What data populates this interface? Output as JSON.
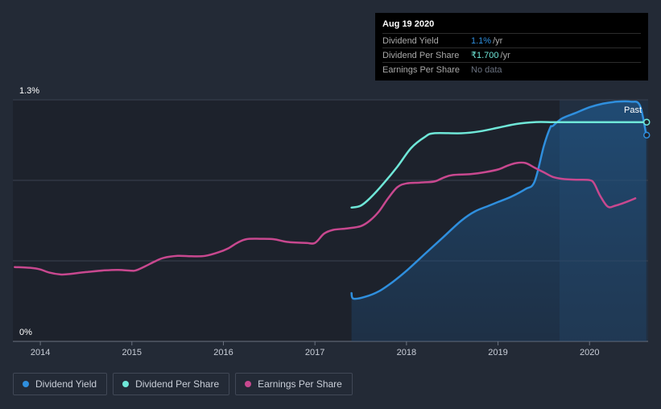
{
  "chart_data": {
    "type": "line",
    "y_axis": {
      "min_label": "0%",
      "max_label": "1.3%",
      "ylim": [
        0,
        1.3
      ]
    },
    "x_axis": {
      "ticks": [
        "2014",
        "2015",
        "2016",
        "2017",
        "2018",
        "2019",
        "2020"
      ],
      "xlim": [
        2013.7,
        2020.64
      ]
    },
    "past_label": "Past",
    "series": [
      {
        "name": "Dividend Yield",
        "key": "yield",
        "color": "#2f8fde",
        "fill": true,
        "points": [
          [
            2017.4,
            0.26
          ],
          [
            2017.42,
            0.23
          ],
          [
            2017.55,
            0.24
          ],
          [
            2017.7,
            0.27
          ],
          [
            2017.85,
            0.32
          ],
          [
            2018.0,
            0.38
          ],
          [
            2018.2,
            0.47
          ],
          [
            2018.4,
            0.56
          ],
          [
            2018.6,
            0.65
          ],
          [
            2018.75,
            0.7
          ],
          [
            2018.9,
            0.73
          ],
          [
            2019.0,
            0.75
          ],
          [
            2019.15,
            0.78
          ],
          [
            2019.3,
            0.82
          ],
          [
            2019.4,
            0.86
          ],
          [
            2019.5,
            1.05
          ],
          [
            2019.57,
            1.15
          ],
          [
            2019.6,
            1.16
          ],
          [
            2019.7,
            1.2
          ],
          [
            2019.85,
            1.23
          ],
          [
            2020.0,
            1.26
          ],
          [
            2020.15,
            1.28
          ],
          [
            2020.3,
            1.29
          ],
          [
            2020.45,
            1.29
          ],
          [
            2020.55,
            1.27
          ],
          [
            2020.62,
            1.11
          ]
        ]
      },
      {
        "name": "Dividend Per Share",
        "key": "dps",
        "color": "#6fe7d8",
        "fill": false,
        "points": [
          [
            2017.4,
            0.72
          ],
          [
            2017.5,
            0.73
          ],
          [
            2017.6,
            0.77
          ],
          [
            2017.75,
            0.85
          ],
          [
            2017.9,
            0.94
          ],
          [
            2018.05,
            1.04
          ],
          [
            2018.2,
            1.1
          ],
          [
            2018.3,
            1.12
          ],
          [
            2018.6,
            1.12
          ],
          [
            2018.8,
            1.13
          ],
          [
            2019.0,
            1.15
          ],
          [
            2019.2,
            1.17
          ],
          [
            2019.4,
            1.18
          ],
          [
            2019.6,
            1.18
          ],
          [
            2019.8,
            1.18
          ],
          [
            2020.0,
            1.18
          ],
          [
            2020.3,
            1.18
          ],
          [
            2020.62,
            1.18
          ]
        ]
      },
      {
        "name": "Earnings Per Share",
        "key": "eps",
        "color": "#c8488f",
        "fill": false,
        "points": [
          [
            2013.72,
            0.4
          ],
          [
            2013.9,
            0.395
          ],
          [
            2014.0,
            0.387
          ],
          [
            2014.1,
            0.37
          ],
          [
            2014.22,
            0.36
          ],
          [
            2014.3,
            0.362
          ],
          [
            2014.5,
            0.373
          ],
          [
            2014.7,
            0.382
          ],
          [
            2014.85,
            0.385
          ],
          [
            2015.0,
            0.38
          ],
          [
            2015.05,
            0.383
          ],
          [
            2015.15,
            0.405
          ],
          [
            2015.25,
            0.43
          ],
          [
            2015.35,
            0.45
          ],
          [
            2015.5,
            0.46
          ],
          [
            2015.65,
            0.458
          ],
          [
            2015.8,
            0.46
          ],
          [
            2015.95,
            0.48
          ],
          [
            2016.05,
            0.5
          ],
          [
            2016.15,
            0.53
          ],
          [
            2016.25,
            0.55
          ],
          [
            2016.4,
            0.552
          ],
          [
            2016.55,
            0.55
          ],
          [
            2016.7,
            0.535
          ],
          [
            2016.9,
            0.53
          ],
          [
            2017.0,
            0.53
          ],
          [
            2017.1,
            0.58
          ],
          [
            2017.2,
            0.6
          ],
          [
            2017.35,
            0.608
          ],
          [
            2017.5,
            0.62
          ],
          [
            2017.6,
            0.65
          ],
          [
            2017.7,
            0.7
          ],
          [
            2017.8,
            0.77
          ],
          [
            2017.9,
            0.83
          ],
          [
            2018.0,
            0.85
          ],
          [
            2018.15,
            0.855
          ],
          [
            2018.3,
            0.86
          ],
          [
            2018.4,
            0.88
          ],
          [
            2018.5,
            0.895
          ],
          [
            2018.7,
            0.9
          ],
          [
            2018.85,
            0.91
          ],
          [
            2019.0,
            0.925
          ],
          [
            2019.1,
            0.945
          ],
          [
            2019.2,
            0.96
          ],
          [
            2019.3,
            0.96
          ],
          [
            2019.4,
            0.935
          ],
          [
            2019.5,
            0.91
          ],
          [
            2019.6,
            0.885
          ],
          [
            2019.7,
            0.875
          ],
          [
            2019.85,
            0.87
          ],
          [
            2020.0,
            0.868
          ],
          [
            2020.05,
            0.85
          ],
          [
            2020.12,
            0.78
          ],
          [
            2020.2,
            0.725
          ],
          [
            2020.28,
            0.73
          ],
          [
            2020.4,
            0.75
          ],
          [
            2020.5,
            0.77
          ]
        ]
      }
    ]
  },
  "tooltip": {
    "date": "Aug 19 2020",
    "rows": [
      {
        "label": "Dividend Yield",
        "value": "1.1%",
        "suffix": "/yr",
        "color": "#2f8fde"
      },
      {
        "label": "Dividend Per Share",
        "value": "₹1.700",
        "suffix": "/yr",
        "color": "#6fe7d8"
      },
      {
        "label": "Earnings Per Share",
        "value": "No data",
        "suffix": "",
        "color": "#6b7280"
      }
    ]
  },
  "legend": [
    {
      "label": "Dividend Yield",
      "color": "#2f8fde"
    },
    {
      "label": "Dividend Per Share",
      "color": "#6fe7d8"
    },
    {
      "label": "Earnings Per Share",
      "color": "#c8488f"
    }
  ]
}
